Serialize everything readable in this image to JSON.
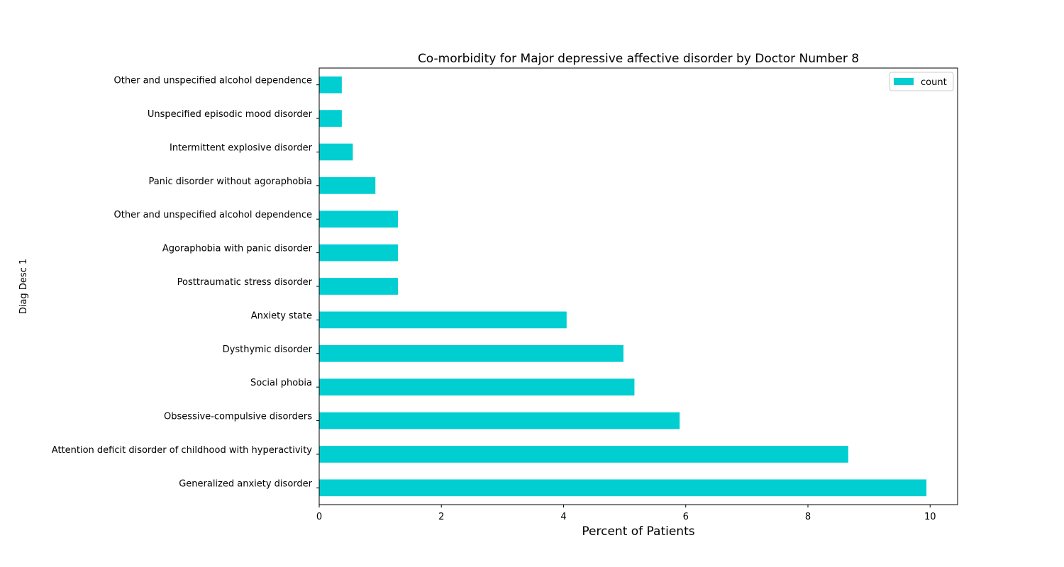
{
  "chart_data": {
    "type": "bar",
    "orientation": "horizontal",
    "title": "Co-morbidity for Major depressive affective disorder by Doctor Number 8",
    "xlabel": "Percent of Patients",
    "ylabel": "Diag Desc 1",
    "xlim": [
      0,
      10.45
    ],
    "xticks": [
      0,
      2,
      4,
      6,
      8,
      10
    ],
    "xtick_labels": [
      "0",
      "2",
      "4",
      "6",
      "8",
      "10"
    ],
    "grid": false,
    "legend": {
      "position": "top-right",
      "entries": [
        "count"
      ]
    },
    "bar_color": "#00ced1",
    "categories": [
      "Generalized anxiety disorder",
      "Attention deficit disorder of childhood with hyperactivity",
      "Obsessive-compulsive disorders",
      "Social phobia",
      "Dysthymic disorder",
      "Anxiety state",
      "Posttraumatic stress disorder",
      "Agoraphobia with panic disorder",
      "Other and unspecified alcohol dependence",
      "Panic disorder without agoraphobia",
      "Intermittent explosive disorder",
      "Unspecified episodic mood disorder",
      "Other and unspecified alcohol dependence"
    ],
    "series": [
      {
        "name": "count",
        "values": [
          9.94,
          8.66,
          5.9,
          5.16,
          4.98,
          4.05,
          1.29,
          1.29,
          1.29,
          0.92,
          0.55,
          0.37,
          0.37
        ]
      }
    ]
  }
}
